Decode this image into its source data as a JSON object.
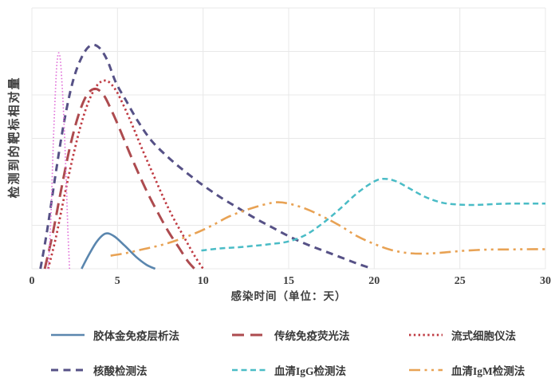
{
  "chart_data": {
    "type": "line",
    "title": "",
    "xlabel": "感染时间（单位：天）",
    "ylabel": "检测到的靶标相对量",
    "xlim": [
      0,
      30
    ],
    "ylim": [
      0,
      1
    ],
    "x_ticks": [
      "0",
      "5",
      "10",
      "15",
      "20",
      "25",
      "30"
    ],
    "x_tick_values": [
      0,
      5,
      10,
      15,
      20,
      25,
      30
    ],
    "y_grid_divisions": 6,
    "grid": true,
    "grid_color": "#e8e8e8",
    "axis_text_color": "#3f3f3f",
    "legend_position": "bottom",
    "series": [
      {
        "id": "colloidal-gold-immunochromatography",
        "name": "胶体金免疫层析法",
        "color": "#5a86ae",
        "style": "solid",
        "points": [
          [
            2.9,
            0
          ],
          [
            3.3,
            0.05
          ],
          [
            3.8,
            0.105
          ],
          [
            4.3,
            0.135
          ],
          [
            4.8,
            0.125
          ],
          [
            5.4,
            0.09
          ],
          [
            6.1,
            0.045
          ],
          [
            6.7,
            0.015
          ],
          [
            7.2,
            0
          ]
        ]
      },
      {
        "id": "traditional-immunofluorescence",
        "name": "传统免疫荧光法",
        "color": "#ad4b4f",
        "style": "long-dash",
        "points": [
          [
            0.75,
            0
          ],
          [
            1.2,
            0.13
          ],
          [
            1.7,
            0.3
          ],
          [
            2.2,
            0.46
          ],
          [
            2.7,
            0.585
          ],
          [
            3.2,
            0.665
          ],
          [
            3.7,
            0.69
          ],
          [
            4.2,
            0.665
          ],
          [
            4.7,
            0.6
          ],
          [
            5.2,
            0.525
          ],
          [
            5.7,
            0.445
          ],
          [
            6.2,
            0.37
          ],
          [
            6.8,
            0.285
          ],
          [
            7.4,
            0.21
          ],
          [
            8.0,
            0.14
          ],
          [
            8.6,
            0.08
          ],
          [
            9.1,
            0.03
          ],
          [
            9.5,
            0
          ]
        ]
      },
      {
        "id": "flow-cytometry",
        "name": "流式细胞仪法",
        "color": "#bf3a42",
        "style": "dotted",
        "points": [
          [
            0.95,
            0
          ],
          [
            1.4,
            0.12
          ],
          [
            1.9,
            0.28
          ],
          [
            2.4,
            0.43
          ],
          [
            2.9,
            0.56
          ],
          [
            3.4,
            0.655
          ],
          [
            3.9,
            0.71
          ],
          [
            4.4,
            0.72
          ],
          [
            4.9,
            0.685
          ],
          [
            5.4,
            0.62
          ],
          [
            5.9,
            0.545
          ],
          [
            6.5,
            0.45
          ],
          [
            7.1,
            0.36
          ],
          [
            7.7,
            0.27
          ],
          [
            8.3,
            0.19
          ],
          [
            8.9,
            0.12
          ],
          [
            9.5,
            0.05
          ],
          [
            10.0,
            0
          ]
        ]
      },
      {
        "id": "nucleic-acid-test",
        "name": "核酸检测法",
        "color": "#565186",
        "style": "dash",
        "points": [
          [
            0.5,
            0
          ],
          [
            0.9,
            0.15
          ],
          [
            1.4,
            0.37
          ],
          [
            1.9,
            0.57
          ],
          [
            2.4,
            0.72
          ],
          [
            2.9,
            0.81
          ],
          [
            3.4,
            0.855
          ],
          [
            3.9,
            0.85
          ],
          [
            4.4,
            0.8
          ],
          [
            4.9,
            0.715
          ],
          [
            5.5,
            0.645
          ],
          [
            6.2,
            0.565
          ],
          [
            7.0,
            0.49
          ],
          [
            8.0,
            0.425
          ],
          [
            9.0,
            0.37
          ],
          [
            10.0,
            0.32
          ],
          [
            11.0,
            0.275
          ],
          [
            12.0,
            0.235
          ],
          [
            13.0,
            0.195
          ],
          [
            14.0,
            0.16
          ],
          [
            15.0,
            0.125
          ],
          [
            16.0,
            0.095
          ],
          [
            17.0,
            0.07
          ],
          [
            18.0,
            0.045
          ],
          [
            19.0,
            0.02
          ],
          [
            19.9,
            0
          ]
        ]
      },
      {
        "id": "serum-igg-test",
        "name": "血清IgG检测法",
        "color": "#4abcc6",
        "style": "short-dash",
        "points": [
          [
            9.9,
            0.07
          ],
          [
            11.0,
            0.078
          ],
          [
            12.0,
            0.082
          ],
          [
            13.0,
            0.088
          ],
          [
            14.0,
            0.095
          ],
          [
            15.0,
            0.105
          ],
          [
            16.0,
            0.13
          ],
          [
            17.0,
            0.175
          ],
          [
            18.0,
            0.23
          ],
          [
            19.0,
            0.29
          ],
          [
            20.0,
            0.335
          ],
          [
            20.6,
            0.345
          ],
          [
            21.3,
            0.335
          ],
          [
            22.0,
            0.31
          ],
          [
            23.0,
            0.275
          ],
          [
            24.0,
            0.253
          ],
          [
            25.0,
            0.246
          ],
          [
            26.0,
            0.245
          ],
          [
            27.0,
            0.248
          ],
          [
            28.0,
            0.25
          ],
          [
            29.0,
            0.25
          ],
          [
            30.0,
            0.25
          ]
        ]
      },
      {
        "id": "serum-igm-test",
        "name": "血清IgM检测法",
        "color": "#e8a254",
        "style": "dash-dot-dot",
        "points": [
          [
            4.6,
            0.05
          ],
          [
            5.5,
            0.06
          ],
          [
            6.5,
            0.075
          ],
          [
            7.5,
            0.09
          ],
          [
            8.5,
            0.11
          ],
          [
            9.5,
            0.135
          ],
          [
            10.5,
            0.165
          ],
          [
            11.5,
            0.2
          ],
          [
            12.5,
            0.225
          ],
          [
            13.5,
            0.245
          ],
          [
            14.3,
            0.255
          ],
          [
            15.0,
            0.25
          ],
          [
            16.0,
            0.23
          ],
          [
            17.0,
            0.2
          ],
          [
            18.0,
            0.165
          ],
          [
            19.0,
            0.125
          ],
          [
            20.0,
            0.095
          ],
          [
            21.0,
            0.072
          ],
          [
            22.0,
            0.06
          ],
          [
            23.0,
            0.058
          ],
          [
            24.0,
            0.062
          ],
          [
            25.0,
            0.068
          ],
          [
            26.0,
            0.072
          ],
          [
            27.0,
            0.074
          ],
          [
            28.0,
            0.074
          ],
          [
            29.0,
            0.075
          ],
          [
            30.0,
            0.075
          ]
        ]
      },
      {
        "id": "unlabeled-pink-spike",
        "name": "",
        "legend": false,
        "color": "#e06ed8",
        "style": "fine-dot",
        "points": [
          [
            0.95,
            0
          ],
          [
            1.1,
            0.18
          ],
          [
            1.25,
            0.48
          ],
          [
            1.4,
            0.72
          ],
          [
            1.5,
            0.81
          ],
          [
            1.6,
            0.825
          ],
          [
            1.7,
            0.77
          ],
          [
            1.85,
            0.6
          ],
          [
            2.0,
            0.35
          ],
          [
            2.1,
            0.15
          ],
          [
            2.2,
            0
          ]
        ]
      }
    ]
  }
}
